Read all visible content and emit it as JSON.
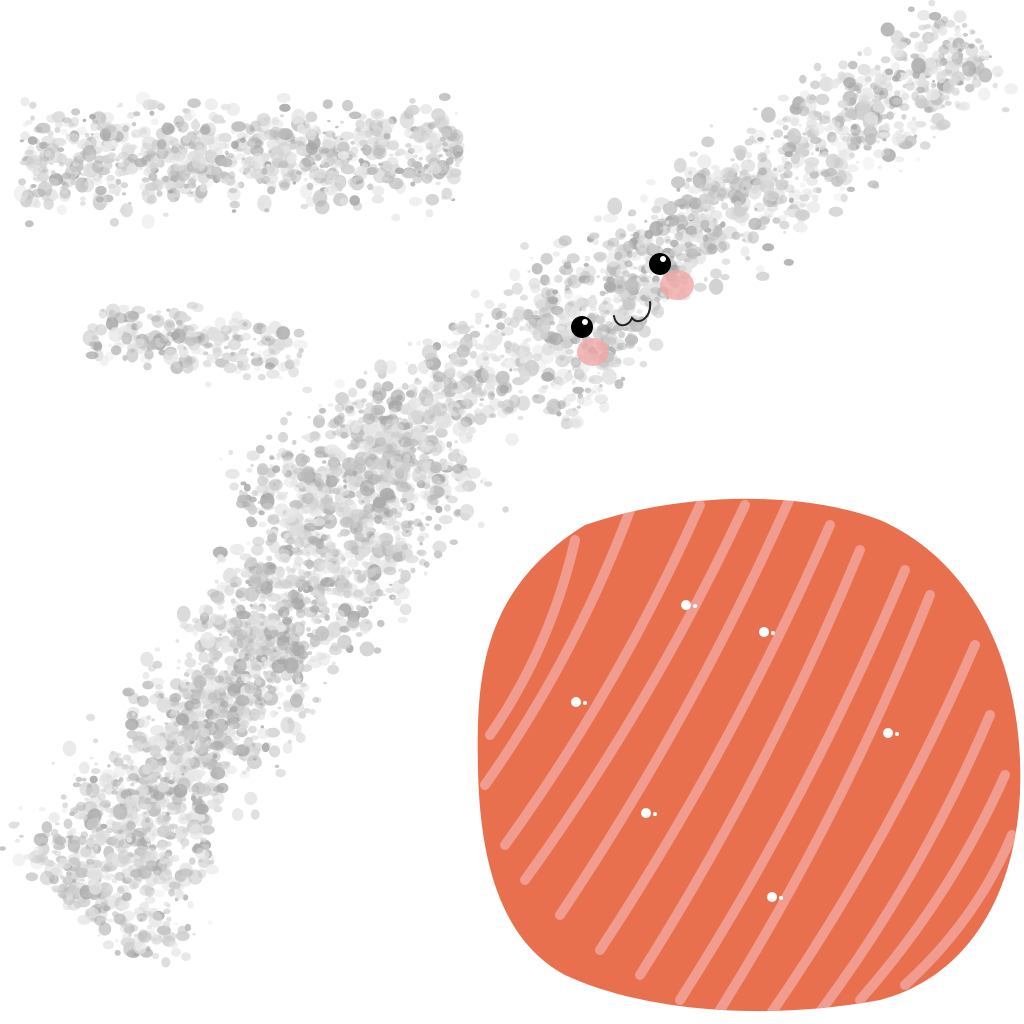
{
  "illustration": {
    "background_color": "#ffffff",
    "characters": [
      {
        "subject": "salt-mist",
        "texture_colors": [
          "#dcdcdc",
          "#cfcfcf",
          "#bcbcbc",
          "#a8a8a8",
          "#e6e6e6"
        ],
        "face": {
          "eyes_color": "#000000",
          "eye_highlight_color": "#ffffff",
          "blush_color": "#f0a8a8",
          "mouth_color": "#222222"
        }
      },
      {
        "subject": "salmon-slice",
        "body_color": "#e8704e",
        "stripe_color": "#f2a196",
        "sparkle_color": "#ffffff"
      }
    ]
  }
}
